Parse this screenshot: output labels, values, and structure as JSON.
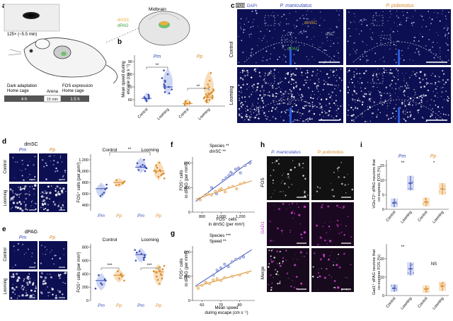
{
  "figure": {
    "panel_letters": [
      "a",
      "b",
      "c",
      "d",
      "e",
      "f",
      "g",
      "h",
      "i"
    ],
    "a": {
      "loom_label": "125× (~5.5 min)",
      "brain_title": "Midbrain",
      "dmsc": "dmSC",
      "dpag": "dPAG",
      "timeline": {
        "labels": [
          "Dark adaptation\nHome cage",
          "Arena",
          "FOS expression\nHome cage"
        ],
        "durations": [
          "4 h",
          "15 min",
          "1.5 h"
        ]
      }
    },
    "b": {
      "ylabel": "Mean speed during\nescape (cm s⁻¹)",
      "yticks": [
        60,
        70,
        80,
        90
      ],
      "species": [
        "Pm",
        "Pp"
      ],
      "xcats": [
        "Control",
        "Looming",
        "Control",
        "Looming"
      ],
      "sig": [
        "**",
        "**"
      ]
    },
    "c": {
      "fos": "FOS",
      "dapi": "DAPI",
      "species": [
        "P. maniculatus",
        "P. polionotus"
      ],
      "rows": [
        "Control",
        "Looming"
      ],
      "dmsc": "dmSC",
      "dsc": "dSC",
      "dpag": "dPAG"
    },
    "d": {
      "region": "dmSC",
      "species": [
        "Pm",
        "Pp"
      ],
      "rows": [
        "Control",
        "Looming"
      ],
      "ylabel": "FOS⁺ cells (per mm²)",
      "yticks": [
        "400",
        "600",
        "800",
        "1,000",
        "1,200"
      ],
      "groups": [
        "Control",
        "Looming"
      ],
      "xcats": [
        "Pm",
        "Pp",
        "Pm",
        "Pp"
      ],
      "sig": "**"
    },
    "e": {
      "region": "dPAG",
      "species": [
        "Pm",
        "Pp"
      ],
      "rows": [
        "Control",
        "Looming"
      ],
      "ylabel": "FOS⁺ cells (per mm²)",
      "yticks": [
        "0",
        "200",
        "400",
        "600",
        "800"
      ],
      "groups": [
        "Control",
        "Looming"
      ],
      "xcats": [
        "Pm",
        "Pp",
        "Pm",
        "Pp"
      ],
      "sig": [
        "***",
        "***"
      ]
    },
    "f": {
      "stat1": "Species **",
      "stat2": "dmSC **",
      "ylabel": "FOS⁺ cells\nin dPAG (per mm²)",
      "xlabel": "FOS⁺ cells\nin dmSC (per mm²)",
      "yticks": [
        "0",
        "400",
        "800"
      ],
      "xticks": [
        "800",
        "1,000",
        "1,200"
      ]
    },
    "g": {
      "stat1": "Species ***",
      "stat2": "Speed **",
      "ylabel": "FOS⁺ cells\nin dPAG (per mm²)",
      "xlabel": "Mean speed\nduring escape (cm s⁻¹)",
      "yticks": [
        "0",
        "400",
        "800"
      ],
      "xticks": [
        "60",
        "70",
        "80"
      ]
    },
    "h": {
      "species": [
        "P. maniculatus",
        "P. polionotus"
      ],
      "rows": [
        "FOS",
        "GAD1",
        "Merge"
      ]
    },
    "i": {
      "ylabel_top": "VGluT2⁺ dPAG neurons that\nco-express FOS (%)",
      "ylabel_bottom": "Gad1⁺ dPAG neurons that\nco-express FOS (%)",
      "yticks_top": [
        "0",
        "5",
        "10",
        "15"
      ],
      "yticks_bottom": [
        "0",
        "10",
        "20"
      ],
      "species": [
        "Pm",
        "Pp"
      ],
      "xcats": [
        "Control",
        "Looming",
        "Control",
        "Looming"
      ],
      "sig_top": [
        "**",
        "*"
      ],
      "sig_bottom": [
        "**",
        "NS"
      ]
    },
    "colors": {
      "pm": "#3a4fb5",
      "pp": "#d98b2b",
      "pm_fill": "#b9c4ec",
      "pp_fill": "#f5cf9c",
      "micro_bg": "#0c0f52",
      "mono_bg": "#111111",
      "gad_bg": "#1a0820"
    },
    "chart_data": [
      {
        "panel": "b",
        "type": "scatter",
        "ylabel": "Mean speed during escape (cm s⁻¹)",
        "ylim": [
          55,
          95
        ],
        "categories": [
          "Control",
          "Looming",
          "Control",
          "Looming"
        ],
        "series": [
          {
            "name": "Pm",
            "values": [
              [
                61,
                63,
                60,
                62,
                59,
                64,
                61,
                62
              ],
              [
                71,
                68,
                75,
                66,
                80,
                72,
                69,
                74,
                77,
                65,
                70,
                83
              ]
            ]
          },
          {
            "name": "Pp",
            "values": [
              [
                57,
                58,
                56,
                59,
                57,
                58
              ],
              [
                59,
                61,
                63,
                60,
                62,
                65,
                68,
                64,
                70,
                58,
                66,
                72,
                61,
                63,
                75,
                60,
                67,
                62,
                69,
                81,
                64,
                59,
                62,
                65
              ]
            ]
          }
        ],
        "medians": [
          61,
          70,
          57,
          62
        ]
      },
      {
        "panel": "d",
        "type": "scatter",
        "ylabel": "FOS⁺ cells (per mm²)",
        "ylim": [
          300,
          1300
        ],
        "categories": [
          "Pm",
          "Pp",
          "Pm",
          "Pp"
        ],
        "values": [
          [
            560,
            620,
            700,
            760,
            680,
            590
          ],
          [
            750,
            800,
            820,
            780,
            840,
            760
          ],
          [
            1050,
            1080,
            1110,
            1140,
            1000,
            1200,
            1060,
            1090,
            1020
          ],
          [
            900,
            950,
            1000,
            1060,
            980,
            1100,
            870,
            1020,
            1150,
            930,
            1010,
            960
          ]
        ],
        "medians": [
          690,
          800,
          1070,
          1000
        ]
      },
      {
        "panel": "e",
        "type": "scatter",
        "ylabel": "FOS⁺ cells (per mm²)",
        "ylim": [
          0,
          850
        ],
        "categories": [
          "Pm",
          "Pp",
          "Pm",
          "Pp"
        ],
        "values": [
          [
            180,
            260,
            320,
            380,
            300,
            240
          ],
          [
            300,
            360,
            400,
            440,
            380,
            330
          ],
          [
            600,
            650,
            700,
            740,
            680,
            720,
            610,
            760,
            640
          ],
          [
            250,
            330,
            380,
            420,
            450,
            500,
            360,
            470,
            400,
            440,
            520,
            310
          ]
        ],
        "medians": [
          300,
          380,
          690,
          430
        ]
      },
      {
        "panel": "f",
        "type": "scatter",
        "xlabel": "FOS⁺ cells in dmSC (per mm²)",
        "ylabel": "FOS⁺ cells in dPAG (per mm²)",
        "xlim": [
          700,
          1350
        ],
        "ylim": [
          0,
          900
        ],
        "series": [
          {
            "name": "Pm",
            "x": [
              900,
              1020,
              1050,
              1080,
              1100,
              1120,
              1150,
              1180,
              1250,
              1300,
              950,
              1200
            ],
            "y": [
              400,
              520,
              560,
              600,
              650,
              620,
              700,
              720,
              760,
              800,
              300,
              640
            ]
          },
          {
            "name": "Pp",
            "x": [
              780,
              820,
              860,
              900,
              940,
              980,
              1000,
              1040,
              1080,
              1120,
              1160,
              1200,
              1240
            ],
            "y": [
              200,
              260,
              300,
              280,
              340,
              360,
              380,
              330,
              400,
              420,
              380,
              460,
              480
            ]
          }
        ]
      },
      {
        "panel": "g",
        "type": "scatter",
        "xlabel": "Mean speed during escape (cm s⁻¹)",
        "ylabel": "FOS⁺ cells in dPAG (per mm²)",
        "xlim": [
          55,
          88
        ],
        "ylim": [
          0,
          900
        ],
        "series": [
          {
            "name": "Pm",
            "x": [
              62,
              66,
              68,
              70,
              72,
              74,
              76,
              78,
              80,
              82
            ],
            "y": [
              300,
              420,
              500,
              540,
              600,
              560,
              640,
              680,
              700,
              720
            ]
          },
          {
            "name": "Pp",
            "x": [
              58,
              60,
              62,
              64,
              66,
              68,
              70,
              72,
              76,
              80,
              84
            ],
            "y": [
              200,
              250,
              300,
              280,
              340,
              360,
              330,
              380,
              400,
              420,
              460
            ]
          }
        ]
      },
      {
        "panel": "i_top",
        "type": "scatter",
        "ylabel": "VGluT2⁺ dPAG neurons that co-express FOS (%)",
        "ylim": [
          0,
          17
        ],
        "categories": [
          "Control",
          "Looming",
          "Control",
          "Looming"
        ],
        "means": [
          2.2,
          9.0,
          2.5,
          7.0
        ],
        "errors": [
          1.5,
          2.5,
          1.5,
          2.0
        ]
      },
      {
        "panel": "i_bottom",
        "type": "scatter",
        "ylabel": "Gad1⁺ dPAG neurons that co-express FOS (%)",
        "ylim": [
          0,
          28
        ],
        "categories": [
          "Control",
          "Looming",
          "Control",
          "Looming"
        ],
        "means": [
          4.0,
          14.5,
          3.5,
          5.0
        ],
        "errors": [
          2.0,
          3.5,
          2.0,
          2.5
        ]
      }
    ]
  }
}
